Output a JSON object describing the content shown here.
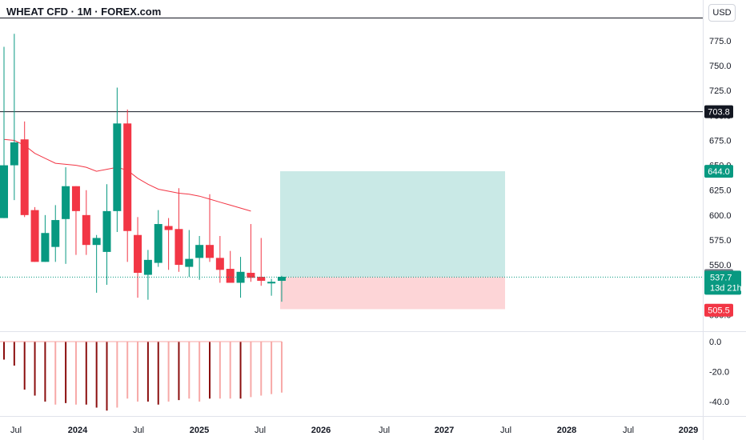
{
  "header": {
    "title": "WHEAT CFD · 1M · FOREX.com",
    "currency_button": "USD"
  },
  "colors": {
    "up": "#089981",
    "down": "#f23645",
    "ma_line": "#f23645",
    "target_zone": "#b2dfdb",
    "stop_zone": "#fccbcd",
    "hist_strong": "#8b0e0e",
    "hist_weak": "#f7a9a7"
  },
  "price_labels": {
    "horizontal_line": "703.8",
    "target": "644.0",
    "prev_close": "537.9",
    "last_price": "537.7",
    "countdown": "13d 21h",
    "stop": "505.5"
  },
  "chart_data": [
    {
      "type": "candlestick",
      "title": "WHEAT CFD · 1M · FOREX.com",
      "x_ticks": [
        "Jul",
        "2024",
        "Jul",
        "2025",
        "Jul",
        "2026",
        "Jul",
        "2027",
        "Jul",
        "2028",
        "Jul",
        "2029"
      ],
      "y_ticks": [
        "775.0",
        "750.0",
        "725.0",
        "700.0",
        "675.0",
        "650.0",
        "625.0",
        "600.0",
        "575.0",
        "550.0",
        "525.0",
        "500.0"
      ],
      "ylim": [
        480,
        795
      ],
      "candles": [
        {
          "o": 597,
          "h": 769,
          "l": 597,
          "c": 650
        },
        {
          "o": 650,
          "h": 782,
          "l": 615,
          "c": 673
        },
        {
          "o": 676,
          "h": 694,
          "l": 598,
          "c": 600
        },
        {
          "o": 605,
          "h": 608,
          "l": 553,
          "c": 553
        },
        {
          "o": 553,
          "h": 600,
          "l": 553,
          "c": 582
        },
        {
          "o": 568,
          "h": 610,
          "l": 553,
          "c": 595
        },
        {
          "o": 596,
          "h": 648,
          "l": 551,
          "c": 629
        },
        {
          "o": 629,
          "h": 629,
          "l": 560,
          "c": 604
        },
        {
          "o": 600,
          "h": 625,
          "l": 560,
          "c": 570
        },
        {
          "o": 570,
          "h": 580,
          "l": 522,
          "c": 577
        },
        {
          "o": 563,
          "h": 631,
          "l": 530,
          "c": 604
        },
        {
          "o": 604,
          "h": 728,
          "l": 583,
          "c": 692
        },
        {
          "o": 692,
          "h": 706,
          "l": 553,
          "c": 584
        },
        {
          "o": 580,
          "h": 598,
          "l": 517,
          "c": 542
        },
        {
          "o": 540,
          "h": 565,
          "l": 515,
          "c": 555
        },
        {
          "o": 552,
          "h": 605,
          "l": 548,
          "c": 591
        },
        {
          "o": 589,
          "h": 597,
          "l": 545,
          "c": 585
        },
        {
          "o": 586,
          "h": 627,
          "l": 543,
          "c": 550
        },
        {
          "o": 548,
          "h": 585,
          "l": 538,
          "c": 556
        },
        {
          "o": 557,
          "h": 579,
          "l": 535,
          "c": 570
        },
        {
          "o": 570,
          "h": 621,
          "l": 553,
          "c": 557
        },
        {
          "o": 557,
          "h": 579,
          "l": 532,
          "c": 545
        },
        {
          "o": 546,
          "h": 564,
          "l": 532,
          "c": 532
        },
        {
          "o": 532,
          "h": 558,
          "l": 517,
          "c": 543
        },
        {
          "o": 542,
          "h": 591,
          "l": 533,
          "c": 537
        },
        {
          "o": 538,
          "h": 577,
          "l": 529,
          "c": 534
        },
        {
          "o": 533,
          "h": 536,
          "l": 519,
          "c": 533
        },
        {
          "o": 534,
          "h": 539,
          "l": 513,
          "c": 538
        }
      ],
      "moving_average": [
        676,
        675,
        670,
        662,
        657,
        652,
        651,
        650,
        648,
        644,
        646,
        648,
        645,
        637,
        631,
        626,
        624,
        622,
        621,
        619,
        616,
        613,
        610,
        607,
        604
      ],
      "horizontal_line": 703.8,
      "position_tool": {
        "entry": 537.9,
        "target": 644.0,
        "stop": 505.5
      },
      "last_price": 537.7
    },
    {
      "type": "bar",
      "title": "",
      "y_ticks": [
        "0.0",
        "-20.0",
        "-40.0"
      ],
      "ylim": [
        -47,
        3
      ],
      "values": [
        -12,
        -16,
        -32,
        -36,
        -40,
        -42,
        -41,
        -42,
        -42,
        -44,
        -46,
        -44,
        -38,
        -40,
        -40,
        -42,
        -40,
        -39,
        -38,
        -40,
        -38,
        -38,
        -38,
        -38,
        -37,
        -36,
        -35,
        -34
      ],
      "strong": [
        true,
        true,
        true,
        true,
        true,
        false,
        true,
        false,
        true,
        true,
        true,
        false,
        false,
        false,
        true,
        true,
        false,
        true,
        false,
        false,
        true,
        false,
        false,
        true,
        false,
        false,
        false,
        false
      ]
    }
  ]
}
